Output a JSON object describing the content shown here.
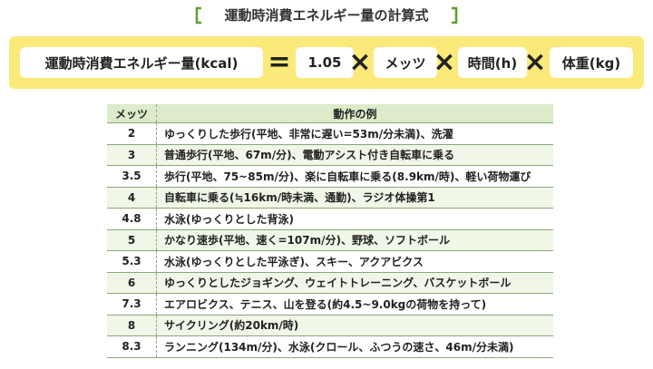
{
  "title": "運動時消費エネルギー量の計算式",
  "formula": {
    "lhs": "運動時消費エネルギー量(kcal)",
    "equals": "=",
    "operator": "×",
    "terms": [
      "1.05",
      "メッツ",
      "時間(h)",
      "体重(kg)"
    ]
  },
  "table": {
    "header": [
      "メッツ",
      "動作の例"
    ],
    "rows": [
      [
        "2",
        "ゆっくりした歩行(平地、非常に遅い=53m/分未満)、洗濯"
      ],
      [
        "3",
        "普通歩行(平地、67m/分)、電動アシスト付き自転車に乗る"
      ],
      [
        "3.5",
        "歩行(平地、75~85m/分)、楽に自転車に乗る(8.9km/時)、軽い荷物運び"
      ],
      [
        "4",
        "自転車に乗る(≒16km/時未満、通勤)、ラジオ体操第1"
      ],
      [
        "4.8",
        "水泳(ゆっくりとした背泳)"
      ],
      [
        "5",
        "かなり速歩(平地、速く=107m/分)、野球、ソフトボール"
      ],
      [
        "5.3",
        "水泳(ゆっくりとした平泳ぎ)、スキー、アクアビクス"
      ],
      [
        "6",
        "ゆっくりとしたジョギング、ウェイトトレーニング、バスケットボール"
      ],
      [
        "7.3",
        "エアロビクス、テニス、山を登る(約4.5~9.0kgの荷物を持って)"
      ],
      [
        "8",
        "サイクリング(約20km/時)"
      ],
      [
        "8.3",
        "ランニング(134m/分)、水泳(クロール、ふつうの速さ、46m/分未満)"
      ]
    ]
  }
}
